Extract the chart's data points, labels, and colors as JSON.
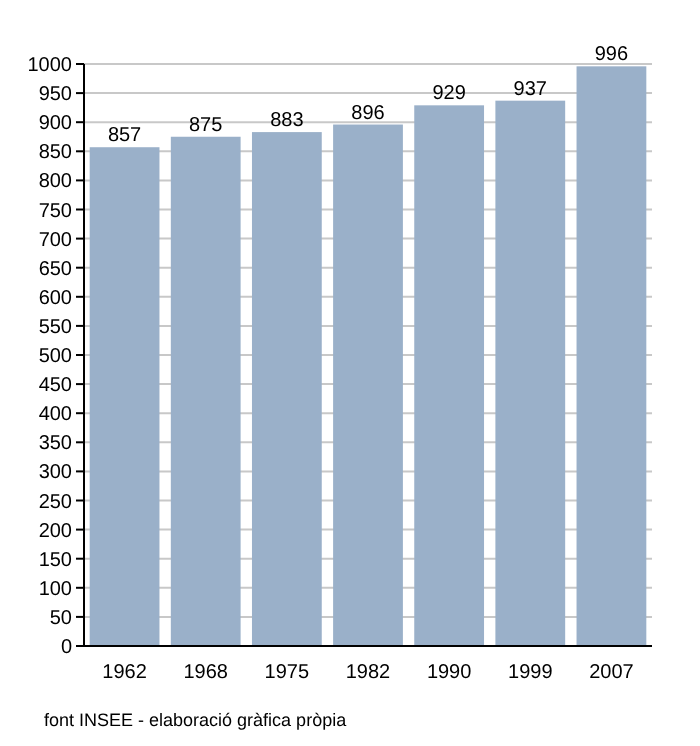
{
  "chart_data": {
    "type": "bar",
    "categories": [
      "1962",
      "1968",
      "1975",
      "1982",
      "1990",
      "1999",
      "2007"
    ],
    "values": [
      857,
      875,
      883,
      896,
      929,
      937,
      996
    ],
    "color": "#9ab0c9",
    "ylim": [
      0,
      1000
    ],
    "yticks": [
      0,
      50,
      100,
      150,
      200,
      250,
      300,
      350,
      400,
      450,
      500,
      550,
      600,
      650,
      700,
      750,
      800,
      850,
      900,
      950,
      1000
    ],
    "grid": "y",
    "data_labels": true,
    "annotations": [
      "font INSEE - elaboració gràfica pròpia"
    ]
  }
}
